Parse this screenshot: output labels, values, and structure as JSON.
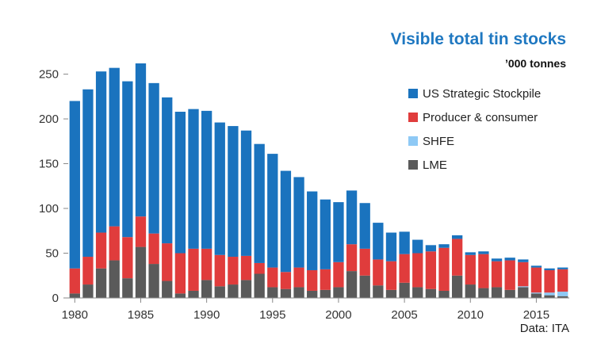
{
  "chart_data": {
    "type": "bar",
    "stacked": true,
    "title": "Visible total tin stocks",
    "subtitle": "’000 tonnes",
    "source": "Data: ITA",
    "x": [
      1980,
      1981,
      1982,
      1983,
      1984,
      1985,
      1986,
      1987,
      1988,
      1989,
      1990,
      1991,
      1992,
      1993,
      1994,
      1995,
      1996,
      1997,
      1998,
      1999,
      2000,
      2001,
      2002,
      2003,
      2004,
      2005,
      2006,
      2007,
      2008,
      2009,
      2010,
      2011,
      2012,
      2013,
      2014,
      2015,
      2016,
      2017
    ],
    "x_tick_labels": [
      "1980",
      "1985",
      "1990",
      "1995",
      "2000",
      "2005",
      "2010",
      "2015"
    ],
    "y_ticks": [
      0,
      50,
      100,
      150,
      200,
      250
    ],
    "ylim": [
      0,
      262
    ],
    "legend_position": "top-right",
    "grid": false,
    "series": [
      {
        "name": "LME",
        "color": "#5a5a5a",
        "values": [
          5,
          15,
          33,
          42,
          22,
          57,
          38,
          19,
          5,
          8,
          20,
          13,
          15,
          20,
          27,
          12,
          10,
          12,
          8,
          9,
          12,
          30,
          25,
          14,
          9,
          17,
          12,
          10,
          8,
          25,
          15,
          11,
          12,
          9,
          12,
          5,
          3,
          2
        ]
      },
      {
        "name": "SHFE",
        "color": "#8ec9f5",
        "values": [
          0,
          0,
          0,
          0,
          0,
          0,
          0,
          0,
          0,
          0,
          0,
          0,
          0,
          0,
          0,
          0,
          0,
          0,
          0,
          0,
          0,
          0,
          0,
          0,
          0,
          0,
          0,
          0,
          0,
          0,
          0,
          0,
          0,
          0,
          1,
          1,
          3,
          5
        ]
      },
      {
        "name": "Producer & consumer",
        "color": "#e03c3c",
        "values": [
          28,
          31,
          40,
          38,
          46,
          34,
          34,
          42,
          45,
          47,
          35,
          35,
          31,
          27,
          12,
          22,
          19,
          22,
          23,
          23,
          28,
          30,
          30,
          29,
          32,
          32,
          38,
          42,
          48,
          41,
          33,
          38,
          29,
          33,
          27,
          28,
          25,
          25
        ]
      },
      {
        "name": "US Strategic Stockpile",
        "color": "#1a73be",
        "values": [
          187,
          187,
          180,
          177,
          174,
          171,
          168,
          163,
          158,
          156,
          154,
          148,
          146,
          140,
          133,
          127,
          113,
          101,
          88,
          78,
          67,
          60,
          51,
          41,
          32,
          25,
          15,
          7,
          4,
          4,
          3,
          3,
          3,
          3,
          3,
          2,
          2,
          2
        ]
      }
    ]
  }
}
